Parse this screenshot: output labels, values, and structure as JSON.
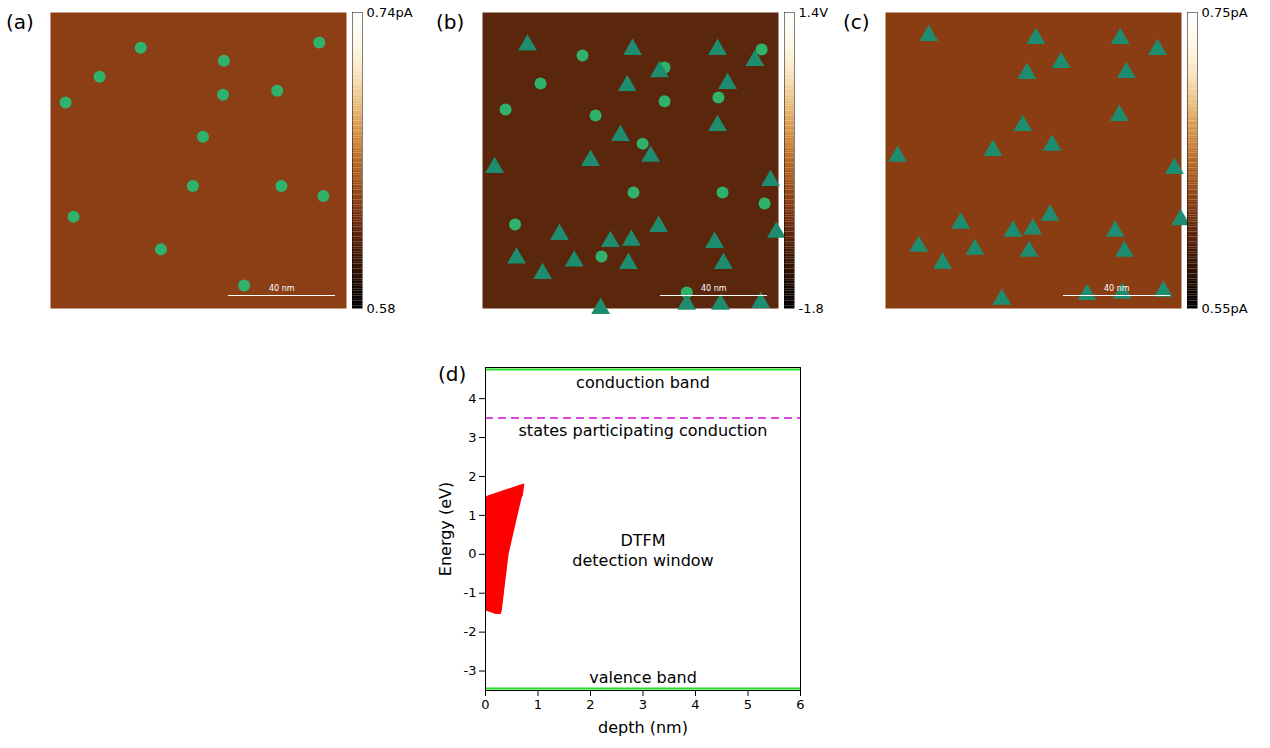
{
  "chart_data": [
    {
      "type": "scatter",
      "title": "(a)",
      "tick_labels": false,
      "xlim": [
        0,
        100
      ],
      "ylim": [
        0,
        100
      ],
      "scale_bar_label": "40 nm",
      "colorbar": {
        "range": [
          0.58,
          0.74
        ],
        "ticks": [
          {
            "value": 0.74,
            "label": "0.74pA"
          },
          0.58
        ]
      },
      "points": [
        {
          "marker": "circle",
          "color": "#2fb36c",
          "x": [
            30.5,
            58.6,
            90.8,
            16.6,
            5.1,
            58.3,
            76.6,
            51.5,
            48.1,
            78,
            92.2,
            7.8,
            37.3,
            65.4
          ],
          "y": [
            11.9,
            16.3,
            10.1,
            21.7,
            30.4,
            27.8,
            26.4,
            42,
            58.6,
            58.6,
            62,
            69,
            80,
            92.2
          ]
        }
      ]
    },
    {
      "type": "scatter",
      "title": "(b)",
      "tick_labels": false,
      "xlim": [
        0,
        100
      ],
      "ylim": [
        0,
        100
      ],
      "scale_bar_label": "40 nm",
      "colorbar": {
        "range": [
          -1.8,
          1.4
        ],
        "ticks": [
          {
            "value": 1.4,
            "label": "1.4V"
          },
          -1.8
        ]
      },
      "points": [
        {
          "marker": "circle",
          "color": "#2fb36c",
          "x": [
            33.8,
            61.5,
            94.3,
            19.6,
            61.5,
            79.7,
            7.8,
            38.2,
            54.1,
            51,
            81.1,
            95.3,
            11,
            40.2,
            69
          ],
          "y": [
            14.5,
            18.6,
            12.5,
            24,
            30,
            28.7,
            32.8,
            34.8,
            44.3,
            60.8,
            60.8,
            64.5,
            71.6,
            82.4,
            94.6
          ]
        },
        {
          "marker": "triangle",
          "color": "#1e8c6e",
          "x": [
            15.2,
            50.7,
            79.4,
            92,
            59.8,
            48.9,
            82.8,
            79.4,
            46.6,
            56.8,
            36.5,
            4.1,
            97.3,
            99.3,
            26,
            59.5,
            43.2,
            50.3,
            78.4,
            11.5,
            31,
            49.3,
            81.4,
            20.3,
            39.9,
            69,
            80.4,
            94
          ],
          "y": [
            11,
            12.5,
            12.5,
            16.2,
            20,
            24.7,
            24,
            38.2,
            41.6,
            48.6,
            50,
            52.4,
            56.8,
            74.3,
            75,
            72.3,
            77.4,
            77,
            77.7,
            83,
            84,
            84.8,
            84.8,
            88.2,
            100,
            98.6,
            98.6,
            98
          ]
        }
      ]
    },
    {
      "type": "scatter",
      "title": "(c)",
      "tick_labels": false,
      "xlim": [
        0,
        100
      ],
      "ylim": [
        0,
        100
      ],
      "scale_bar_label": "40 nm",
      "colorbar": {
        "range": [
          0.55,
          0.75
        ],
        "ticks": [
          {
            "value": 0.75,
            "label": "0.75pA"
          },
          {
            "value": 0.55,
            "label": "0.55pA"
          }
        ]
      },
      "points": [
        {
          "marker": "triangle",
          "color": "#1e8c6e",
          "x": [
            14.6,
            50.8,
            79.3,
            91.9,
            59.3,
            47.8,
            81.4,
            79,
            46.4,
            56.3,
            36.3,
            4.1,
            97.6,
            99.7,
            25.4,
            55.6,
            43.1,
            49.8,
            77.6,
            11.2,
            30.2,
            48.5,
            80.7,
            19.3,
            39.3,
            68.1,
            80,
            93.9
          ],
          "y": [
            7.8,
            8.8,
            8.8,
            12.5,
            16.9,
            20.6,
            20.3,
            34.8,
            38.2,
            44.9,
            46.6,
            48.6,
            52.7,
            70,
            71.2,
            68.5,
            73.9,
            73.2,
            73.9,
            79,
            80,
            80.7,
            80.7,
            84.7,
            96.9,
            95.3,
            94.9,
            94.2
          ]
        }
      ]
    },
    {
      "type": "area",
      "title": "(d)",
      "xlabel": "depth (nm)",
      "ylabel": "Energy (eV)",
      "xlim": [
        0,
        6
      ],
      "xticks": [
        0,
        1,
        2,
        3,
        4,
        5,
        6
      ],
      "ylim": [
        -3.5,
        4.8
      ],
      "yticks": [
        -3,
        -2,
        -1,
        0,
        1,
        2,
        3,
        4
      ],
      "lines": [
        {
          "name": "conduction band",
          "value": 4.75,
          "color": "#22dd22",
          "line_style": "solid"
        },
        {
          "name": "states participating conduction",
          "value": 3.5,
          "color": "#dd44dd",
          "line_style": "dashed"
        },
        {
          "name": "valence band",
          "value": -3.45,
          "color": "#22dd22",
          "line_style": "solid"
        }
      ],
      "region": {
        "name": "DTFM\ndetection window",
        "color": "#ff0000",
        "energy": [
          -1.55,
          -1.45,
          0,
          1,
          1.45,
          1.5,
          1.8
        ],
        "depth_left": [
          0.2,
          0,
          0,
          0,
          0,
          0.05,
          0.72
        ],
        "depth_right": [
          0.3,
          0.32,
          0.45,
          0.62,
          0.7,
          0.72,
          0.75
        ]
      }
    }
  ]
}
